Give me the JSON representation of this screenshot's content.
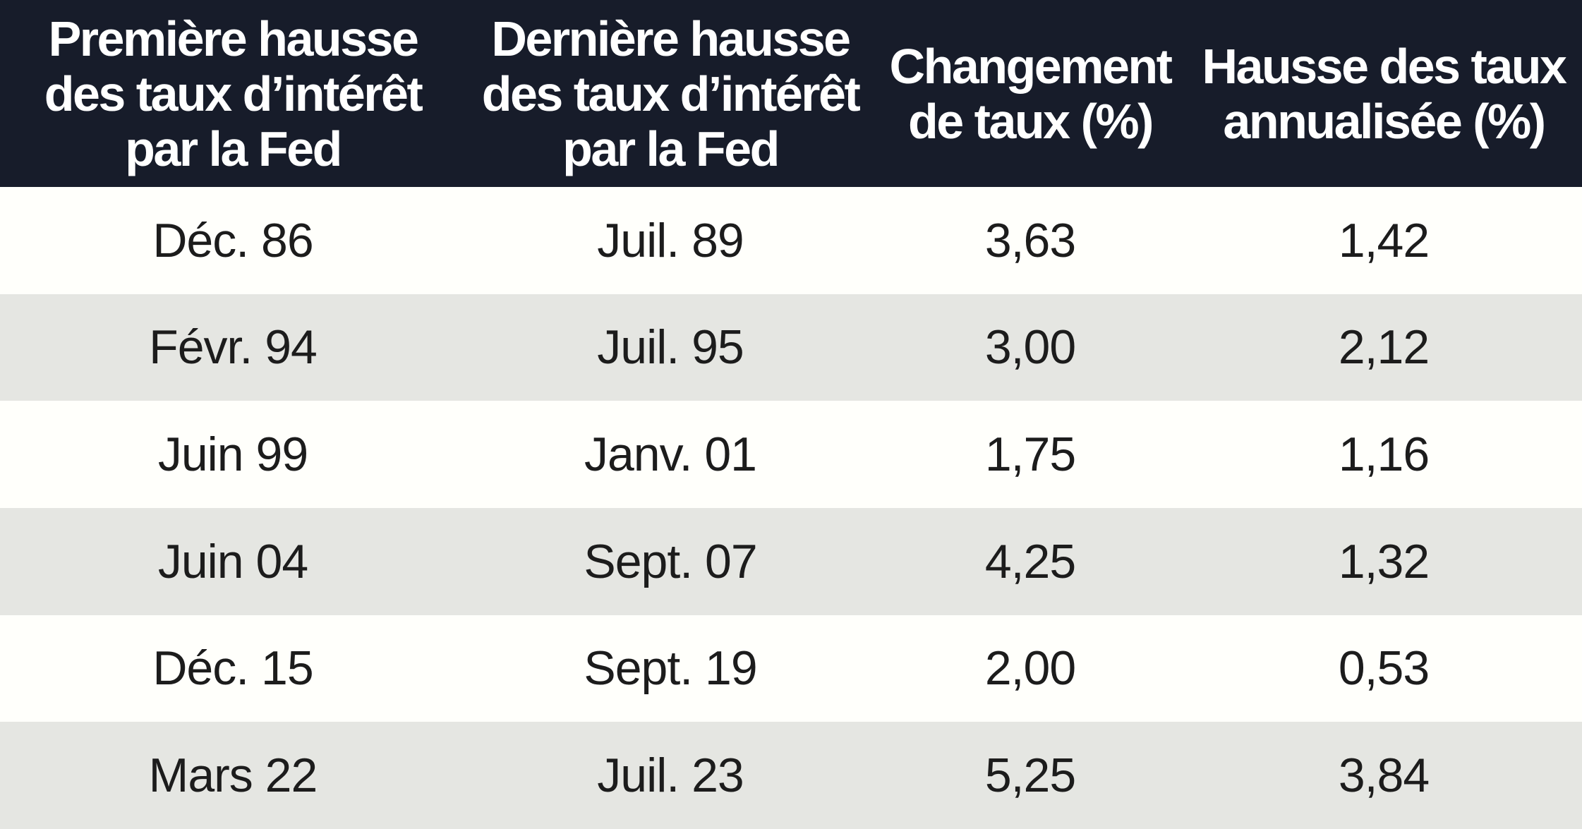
{
  "colors": {
    "header_background": "#171c2a",
    "header_text": "#ffffff",
    "row_background": "#fffffb",
    "row_alt_background": "#e5e6e2",
    "body_text": "#1c1c1c"
  },
  "chart_data": {
    "type": "table",
    "columns": [
      "Première hausse\ndes taux d’intérêt\npar la Fed",
      "Dernière hausse\ndes taux d’intérêt\npar la Fed",
      "Changement\nde taux (%)",
      "Hausse des taux\nannualisée (%)"
    ],
    "rows": [
      [
        "Déc. 86",
        "Juil. 89",
        "3,63",
        "1,42"
      ],
      [
        "Févr. 94",
        "Juil. 95",
        "3,00",
        "2,12"
      ],
      [
        "Juin 99",
        "Janv. 01",
        "1,75",
        "1,16"
      ],
      [
        "Juin 04",
        "Sept. 07",
        "4,25",
        "1,32"
      ],
      [
        "Déc. 15",
        "Sept. 19",
        "2,00",
        "0,53"
      ],
      [
        "Mars 22",
        "Juil. 23",
        "5,25",
        "3,84"
      ]
    ]
  }
}
